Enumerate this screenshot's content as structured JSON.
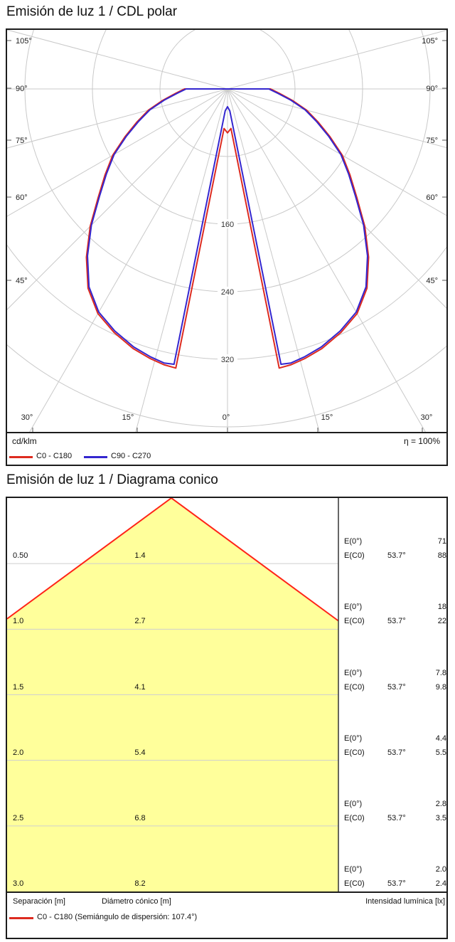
{
  "polar": {
    "title": "Emisión de luz 1 / CDL polar",
    "unit": "cd/klm",
    "efficiency": "η = 100%",
    "legend": [
      {
        "label": "C0 - C180",
        "color": "#dd2b20"
      },
      {
        "label": "C90 - C270",
        "color": "#3426cf"
      }
    ]
  },
  "cone": {
    "title": "Emisión de luz 1 / Diagrama conico",
    "labels": {
      "e0": "E(0°)",
      "ec0": "E(C0)",
      "ec0_angle": "53.7°"
    },
    "footer": {
      "separation": "Separación [m]",
      "diameter": "Diámetro cónico [m]",
      "intensity": "Intensidad lumínica [lx]"
    },
    "legend": {
      "label": "C0 - C180 (Semiángulo de dispersión: 107.4°)",
      "color": "#dd2b20"
    },
    "fill": "#ffff9b",
    "line_color": "#ff2318",
    "apex_semiangle_deg": 53.7
  },
  "chart_data": [
    {
      "type": "line",
      "subtype": "polar-intensity-cdl",
      "title": "Emisión de luz 1 / CDL polar",
      "unit": "cd/klm",
      "efficiency_pct": 100,
      "rings_cd_klm": [
        80,
        160,
        240,
        320,
        400
      ],
      "ring_labels": [
        "160",
        "240",
        "320"
      ],
      "angle_step_deg": 15,
      "angle_labels": {
        "left": [
          "105°",
          "90°",
          "75°",
          "60°",
          "45°"
        ],
        "bottom": [
          "30°",
          "15°",
          "0°",
          "15°",
          "30°"
        ],
        "right": [
          "105°",
          "90°",
          "75°",
          "60°",
          "45°"
        ]
      },
      "legend_position": "bottom",
      "series": [
        {
          "name": "C0 - C180",
          "color": "#dd2b20",
          "theta_deg_from_nadir": [
            90,
            85,
            80,
            75,
            70,
            65,
            60,
            55,
            50,
            45,
            40,
            35,
            30,
            25,
            20,
            16,
            13,
            10.5,
            5,
            0
          ],
          "r_cd_klm": [
            51,
            62,
            78,
            97,
            114,
            134,
            157,
            177,
            200,
            230,
            260,
            288,
            307,
            318,
            327,
            332,
            335,
            336,
            47,
            52
          ]
        },
        {
          "name": "C90 - C270",
          "color": "#3426cf",
          "theta_deg_from_nadir": [
            90,
            85,
            80,
            75,
            70,
            65,
            60,
            55,
            50,
            45,
            40,
            35,
            30,
            25,
            20,
            16,
            13,
            11,
            6,
            0
          ],
          "r_cd_klm": [
            49,
            60,
            76,
            95,
            112,
            132,
            155,
            175,
            198,
            228,
            258,
            286,
            305,
            316,
            325,
            330,
            333,
            332,
            26,
            21
          ]
        }
      ]
    },
    {
      "type": "table",
      "subtype": "cone-diagram",
      "title": "Emisión de luz 1 / Diagrama conico",
      "columns": [
        "Separación [m]",
        "Diámetro cónico [m]",
        "E(0°) [lx]",
        "E(C0) 53.7° [lx]"
      ],
      "rows": [
        {
          "separation": "0.50",
          "diameter": "1.4",
          "e0": "71",
          "ec0": "88"
        },
        {
          "separation": "1.0",
          "diameter": "2.7",
          "e0": "18",
          "ec0": "22"
        },
        {
          "separation": "1.5",
          "diameter": "4.1",
          "e0": "7.8",
          "ec0": "9.8"
        },
        {
          "separation": "2.0",
          "diameter": "5.4",
          "e0": "4.4",
          "ec0": "5.5"
        },
        {
          "separation": "2.5",
          "diameter": "6.8",
          "e0": "2.8",
          "ec0": "3.5"
        },
        {
          "separation": "3.0",
          "diameter": "8.2",
          "e0": "2.0",
          "ec0": "2.4"
        }
      ],
      "legend": "C0 - C180 (Semiángulo de dispersión: 107.4°)"
    }
  ]
}
